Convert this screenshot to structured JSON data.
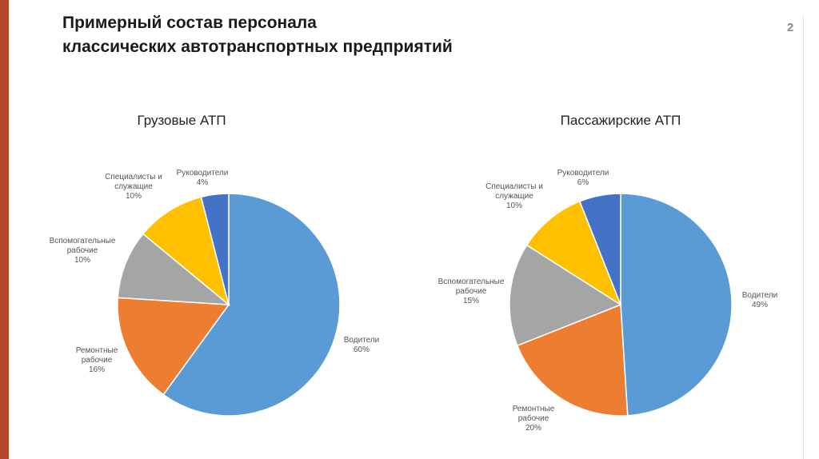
{
  "slide": {
    "title_line1": "Примерный состав персонала",
    "title_line2": "классических автотранспортных предприятий",
    "page_number": "2",
    "accent_color": "#b5452b"
  },
  "chart_data": [
    {
      "type": "pie",
      "title": "Грузовые АТП",
      "slices": [
        {
          "label": "Водители",
          "value": 60,
          "value_label": "60%",
          "color": "#5b9bd5"
        },
        {
          "label": "Ремонтные рабочие",
          "value": 16,
          "value_label": "16%",
          "color": "#ed7d31"
        },
        {
          "label": "Вспомогательные рабочие",
          "value": 10,
          "value_label": "10%",
          "color": "#a5a5a5"
        },
        {
          "label": "Специалисты и служащие",
          "value": 10,
          "value_label": "10%",
          "color": "#ffc000"
        },
        {
          "label": "Руководители",
          "value": 4,
          "value_label": "4%",
          "color": "#4472c4"
        }
      ]
    },
    {
      "type": "pie",
      "title": "Пассажирские АТП",
      "slices": [
        {
          "label": "Водители",
          "value": 49,
          "value_label": "49%",
          "color": "#5b9bd5"
        },
        {
          "label": "Ремонтные рабочие",
          "value": 20,
          "value_label": "20%",
          "color": "#ed7d31"
        },
        {
          "label": "Вспомогательные рабочие",
          "value": 15,
          "value_label": "15%",
          "color": "#a5a5a5"
        },
        {
          "label": "Специалисты и служащие",
          "value": 10,
          "value_label": "10%",
          "color": "#ffc000"
        },
        {
          "label": "Руководители",
          "value": 6,
          "value_label": "6%",
          "color": "#4472c4"
        }
      ]
    }
  ]
}
